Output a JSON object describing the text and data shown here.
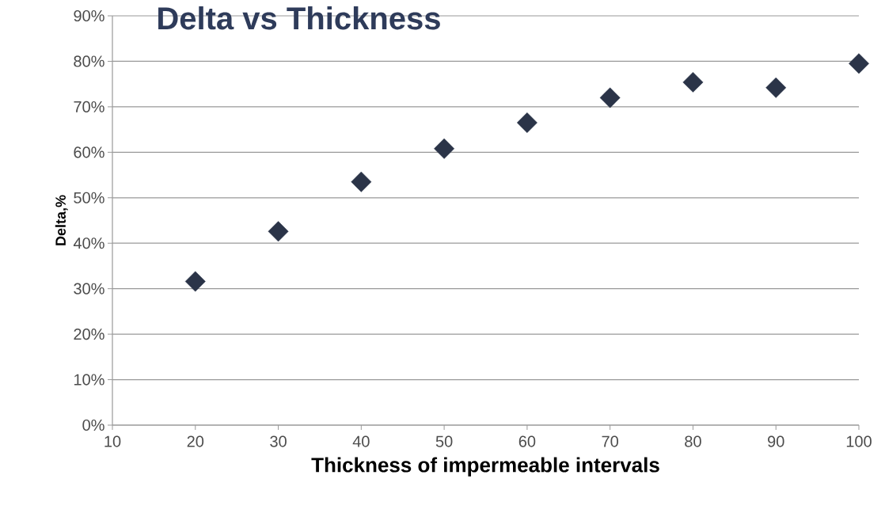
{
  "chart_data": {
    "type": "scatter",
    "title": "Delta vs Thickness",
    "xlabel": "Thickness of impermeable intervals",
    "ylabel": "Delta,%",
    "x": [
      20,
      30,
      40,
      50,
      60,
      70,
      80,
      90,
      100
    ],
    "series": [
      {
        "color": "#2b3448",
        "values": [
          31.6,
          42.6,
          53.5,
          60.8,
          66.5,
          72.0,
          75.4,
          74.2,
          79.5
        ]
      }
    ],
    "xlim": [
      10,
      100
    ],
    "xticks": [
      10,
      20,
      30,
      40,
      50,
      60,
      70,
      80,
      90,
      100
    ],
    "ylim": [
      0,
      90
    ],
    "yticks": [
      {
        "value": 0,
        "label": "0%"
      },
      {
        "value": 10,
        "label": "10%"
      },
      {
        "value": 20,
        "label": "20%"
      },
      {
        "value": 30,
        "label": "30%"
      },
      {
        "value": 40,
        "label": "40%"
      },
      {
        "value": 50,
        "label": "50%"
      },
      {
        "value": 60,
        "label": "60%"
      },
      {
        "value": 70,
        "label": "70%"
      },
      {
        "value": 80,
        "label": "80%"
      },
      {
        "value": 90,
        "label": "90%"
      }
    ],
    "grid": "y",
    "marker": "diamond"
  }
}
